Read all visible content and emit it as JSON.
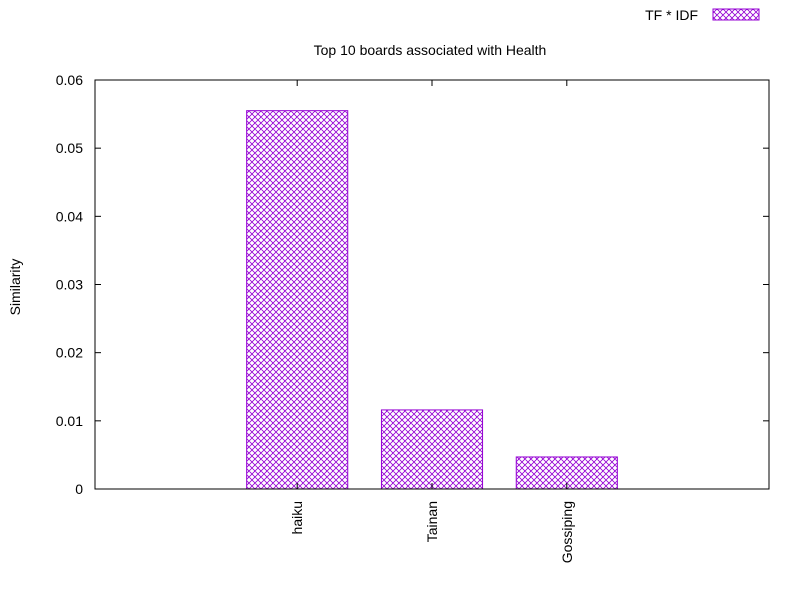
{
  "chart_data": {
    "type": "bar",
    "title": "Top 10 boards associated with Health",
    "xlabel": "",
    "ylabel": "Similarity",
    "categories": [
      "haiku",
      "Tainan",
      "Gossiping"
    ],
    "series": [
      {
        "name": "TF * IDF",
        "values": [
          0.0555,
          0.0116,
          0.0047
        ]
      }
    ],
    "ylim": [
      0,
      0.06
    ],
    "yticks": [
      "0",
      "0.01",
      "0.02",
      "0.03",
      "0.04",
      "0.05",
      "0.06"
    ],
    "ytick_values": [
      0,
      0.01,
      0.02,
      0.03,
      0.04,
      0.05,
      0.06
    ],
    "grid": false,
    "legend_position": "top-right",
    "bar_color": "#9400d3",
    "fill_pattern": "crosshatch"
  }
}
